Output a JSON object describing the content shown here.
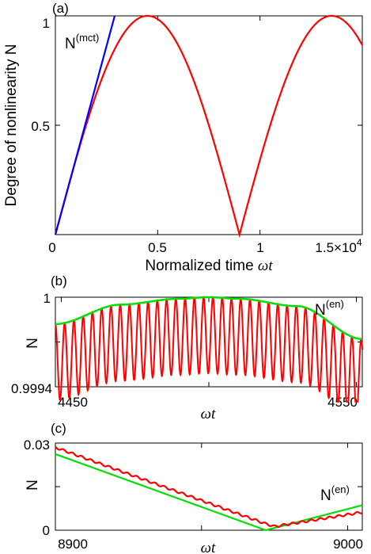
{
  "chart_data": [
    {
      "panel": "(a)",
      "type": "line",
      "xlabel_prefix": "Normalized time ",
      "xlabel_var": "ωt",
      "ylabel": "Degree of nonlinearity N",
      "xlim": [
        0,
        15000
      ],
      "ylim": [
        0,
        1
      ],
      "xticks": [
        0,
        5000,
        10000,
        15000
      ],
      "xtick_labels": [
        "0",
        "0.5",
        "1",
        "1.5×10"
      ],
      "xtick_exponent": "4",
      "yticks": [
        0.5,
        1
      ],
      "ytick_labels": [
        "0.5",
        "1"
      ],
      "grid": false,
      "series": [
        {
          "name": "N",
          "color": "#ff0000",
          "label": "",
          "x": [
            0,
            500,
            1000,
            1500,
            2000,
            2500,
            3000,
            3500,
            4000,
            4500,
            5000,
            5500,
            6000,
            6500,
            7000,
            7500,
            8000,
            8500,
            9000,
            9500,
            10000,
            10500,
            11000,
            11500,
            12000,
            12500,
            13000,
            13500,
            14000,
            14500,
            15000
          ],
          "y": [
            0.0,
            0.174,
            0.342,
            0.5,
            0.643,
            0.766,
            0.866,
            0.94,
            0.985,
            1.0,
            0.985,
            0.94,
            0.866,
            0.766,
            0.643,
            0.5,
            0.342,
            0.174,
            0.0,
            0.174,
            0.342,
            0.5,
            0.643,
            0.766,
            0.866,
            0.94,
            0.985,
            1.0,
            0.985,
            0.94,
            0.866
          ]
        },
        {
          "name": "N(mct)",
          "color": "#0000ff",
          "label": "N",
          "label_sup": "(mct)",
          "x": [
            0,
            2900
          ],
          "y": [
            0,
            1.0
          ]
        }
      ]
    },
    {
      "panel": "(b)",
      "type": "line",
      "xlabel_var": "ωt",
      "ylabel": "N",
      "xlim": [
        4448,
        4552
      ],
      "ylim": [
        0.9994,
        1.0
      ],
      "xticks": [
        4450,
        4500,
        4550
      ],
      "xtick_labels": [
        "4450",
        "",
        "4550"
      ],
      "yticks": [
        0.9994,
        0.9997,
        1.0
      ],
      "ytick_labels": [
        "0.9994",
        "",
        "1"
      ],
      "grid": false,
      "series": [
        {
          "name": "N",
          "color": "#ff0000",
          "label": "",
          "oscillation_period": 3.14,
          "envelope_min_offset": 0.00051
        },
        {
          "name": "N(en)",
          "color": "#00e000",
          "label": "N",
          "label_sup": "(en)",
          "x": [
            4448,
            4470,
            4490,
            4500,
            4510,
            4530,
            4552
          ],
          "y": [
            0.99982,
            0.99995,
            0.99999,
            1.0,
            0.99999,
            0.99994,
            0.99972
          ]
        }
      ]
    },
    {
      "panel": "(c)",
      "type": "line",
      "xlabel_var": "ωt",
      "ylabel": "N",
      "xlim": [
        8900,
        9005
      ],
      "ylim": [
        0,
        0.03
      ],
      "xticks": [
        8900,
        8950,
        9000
      ],
      "xtick_labels": [
        "8900",
        "",
        "9000"
      ],
      "yticks": [
        0,
        0.015,
        0.03
      ],
      "ytick_labels": [
        "0",
        "",
        "0.03"
      ],
      "grid": false,
      "series": [
        {
          "name": "N(en)",
          "color": "#00e000",
          "label": "N",
          "label_sup": "(en)",
          "x": [
            8900,
            8972,
            9005
          ],
          "y": [
            0.0262,
            0.0,
            0.0086
          ]
        },
        {
          "name": "N",
          "color": "#ff0000",
          "label": "",
          "x": [
            8900,
            8972,
            8975,
            9005
          ],
          "y": [
            0.0285,
            0.0022,
            0.0013,
            0.0062
          ]
        }
      ]
    }
  ]
}
